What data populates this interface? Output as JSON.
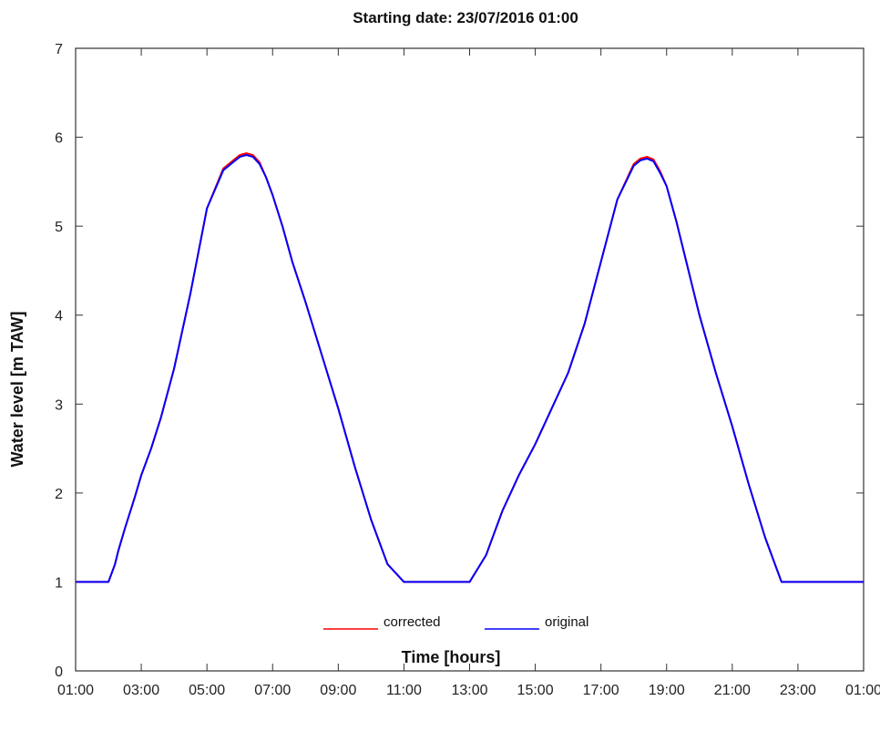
{
  "chart_data": {
    "type": "line",
    "title": "Starting date: 23/07/2016 01:00",
    "xlabel": "Time [hours]",
    "ylabel": "Water level [m TAW]",
    "x_unit": "hours",
    "xlim": [
      0,
      24
    ],
    "ylim": [
      0,
      7
    ],
    "x_tick_values": [
      0,
      2,
      4,
      6,
      8,
      10,
      12,
      14,
      16,
      18,
      20,
      22,
      24
    ],
    "x_tick_labels": [
      "01:00",
      "03:00",
      "05:00",
      "07:00",
      "09:00",
      "11:00",
      "13:00",
      "15:00",
      "17:00",
      "19:00",
      "21:00",
      "23:00",
      "01:00"
    ],
    "y_ticks": [
      0,
      1,
      2,
      3,
      4,
      5,
      6,
      7
    ],
    "grid": false,
    "legend_position": "bottom-center",
    "series": [
      {
        "name": "corrected",
        "color": "#ff0000",
        "x": [
          0,
          0.5,
          1.0,
          1.2,
          1.3,
          1.5,
          1.8,
          2.0,
          2.3,
          2.6,
          3.0,
          3.5,
          4.0,
          4.5,
          5.0,
          5.2,
          5.4,
          5.6,
          5.8,
          6.0,
          6.3,
          6.6,
          7.0,
          7.5,
          8.0,
          8.5,
          9.0,
          9.5,
          10.0,
          10.3,
          10.6,
          11.0,
          12.0,
          12.5,
          13.0,
          13.5,
          14.0,
          14.5,
          15.0,
          15.5,
          16.0,
          16.5,
          17.0,
          17.2,
          17.4,
          17.6,
          17.8,
          18.0,
          18.3,
          18.6,
          19.0,
          19.5,
          20.0,
          20.5,
          21.0,
          21.5,
          22.0,
          22.3,
          22.6,
          23.0,
          23.5,
          24.0
        ],
        "y": [
          1.0,
          1.0,
          1.0,
          1.2,
          1.35,
          1.6,
          1.95,
          2.2,
          2.5,
          2.85,
          3.4,
          4.25,
          5.2,
          5.65,
          5.8,
          5.82,
          5.8,
          5.72,
          5.55,
          5.35,
          5.0,
          4.6,
          4.15,
          3.55,
          2.95,
          2.3,
          1.7,
          1.2,
          1.0,
          1.0,
          1.0,
          1.0,
          1.0,
          1.3,
          1.8,
          2.2,
          2.55,
          2.95,
          3.35,
          3.9,
          4.6,
          5.3,
          5.7,
          5.76,
          5.78,
          5.75,
          5.62,
          5.45,
          5.05,
          4.6,
          4.0,
          3.35,
          2.75,
          2.1,
          1.5,
          1.0,
          1.0,
          1.0,
          1.0,
          1.0,
          1.0,
          1.0
        ]
      },
      {
        "name": "original",
        "color": "#0000ff",
        "x": [
          0,
          0.5,
          1.0,
          1.2,
          1.3,
          1.5,
          1.8,
          2.0,
          2.3,
          2.6,
          3.0,
          3.5,
          4.0,
          4.5,
          5.0,
          5.2,
          5.4,
          5.6,
          5.8,
          6.0,
          6.3,
          6.6,
          7.0,
          7.5,
          8.0,
          8.5,
          9.0,
          9.5,
          10.0,
          10.3,
          10.6,
          11.0,
          12.0,
          12.5,
          13.0,
          13.5,
          14.0,
          14.5,
          15.0,
          15.5,
          16.0,
          16.5,
          17.0,
          17.2,
          17.4,
          17.6,
          17.8,
          18.0,
          18.3,
          18.6,
          19.0,
          19.5,
          20.0,
          20.5,
          21.0,
          21.5,
          22.0,
          22.3,
          22.6,
          23.0,
          23.5,
          24.0
        ],
        "y": [
          1.0,
          1.0,
          1.0,
          1.2,
          1.35,
          1.6,
          1.95,
          2.2,
          2.5,
          2.85,
          3.4,
          4.25,
          5.2,
          5.63,
          5.78,
          5.8,
          5.78,
          5.7,
          5.55,
          5.35,
          5.0,
          4.6,
          4.15,
          3.55,
          2.95,
          2.3,
          1.7,
          1.2,
          1.0,
          1.0,
          1.0,
          1.0,
          1.0,
          1.3,
          1.8,
          2.2,
          2.55,
          2.95,
          3.35,
          3.9,
          4.6,
          5.3,
          5.68,
          5.74,
          5.76,
          5.73,
          5.6,
          5.45,
          5.05,
          4.6,
          4.0,
          3.35,
          2.75,
          2.1,
          1.5,
          1.0,
          1.0,
          1.0,
          1.0,
          1.0,
          1.0,
          1.0
        ]
      }
    ]
  }
}
